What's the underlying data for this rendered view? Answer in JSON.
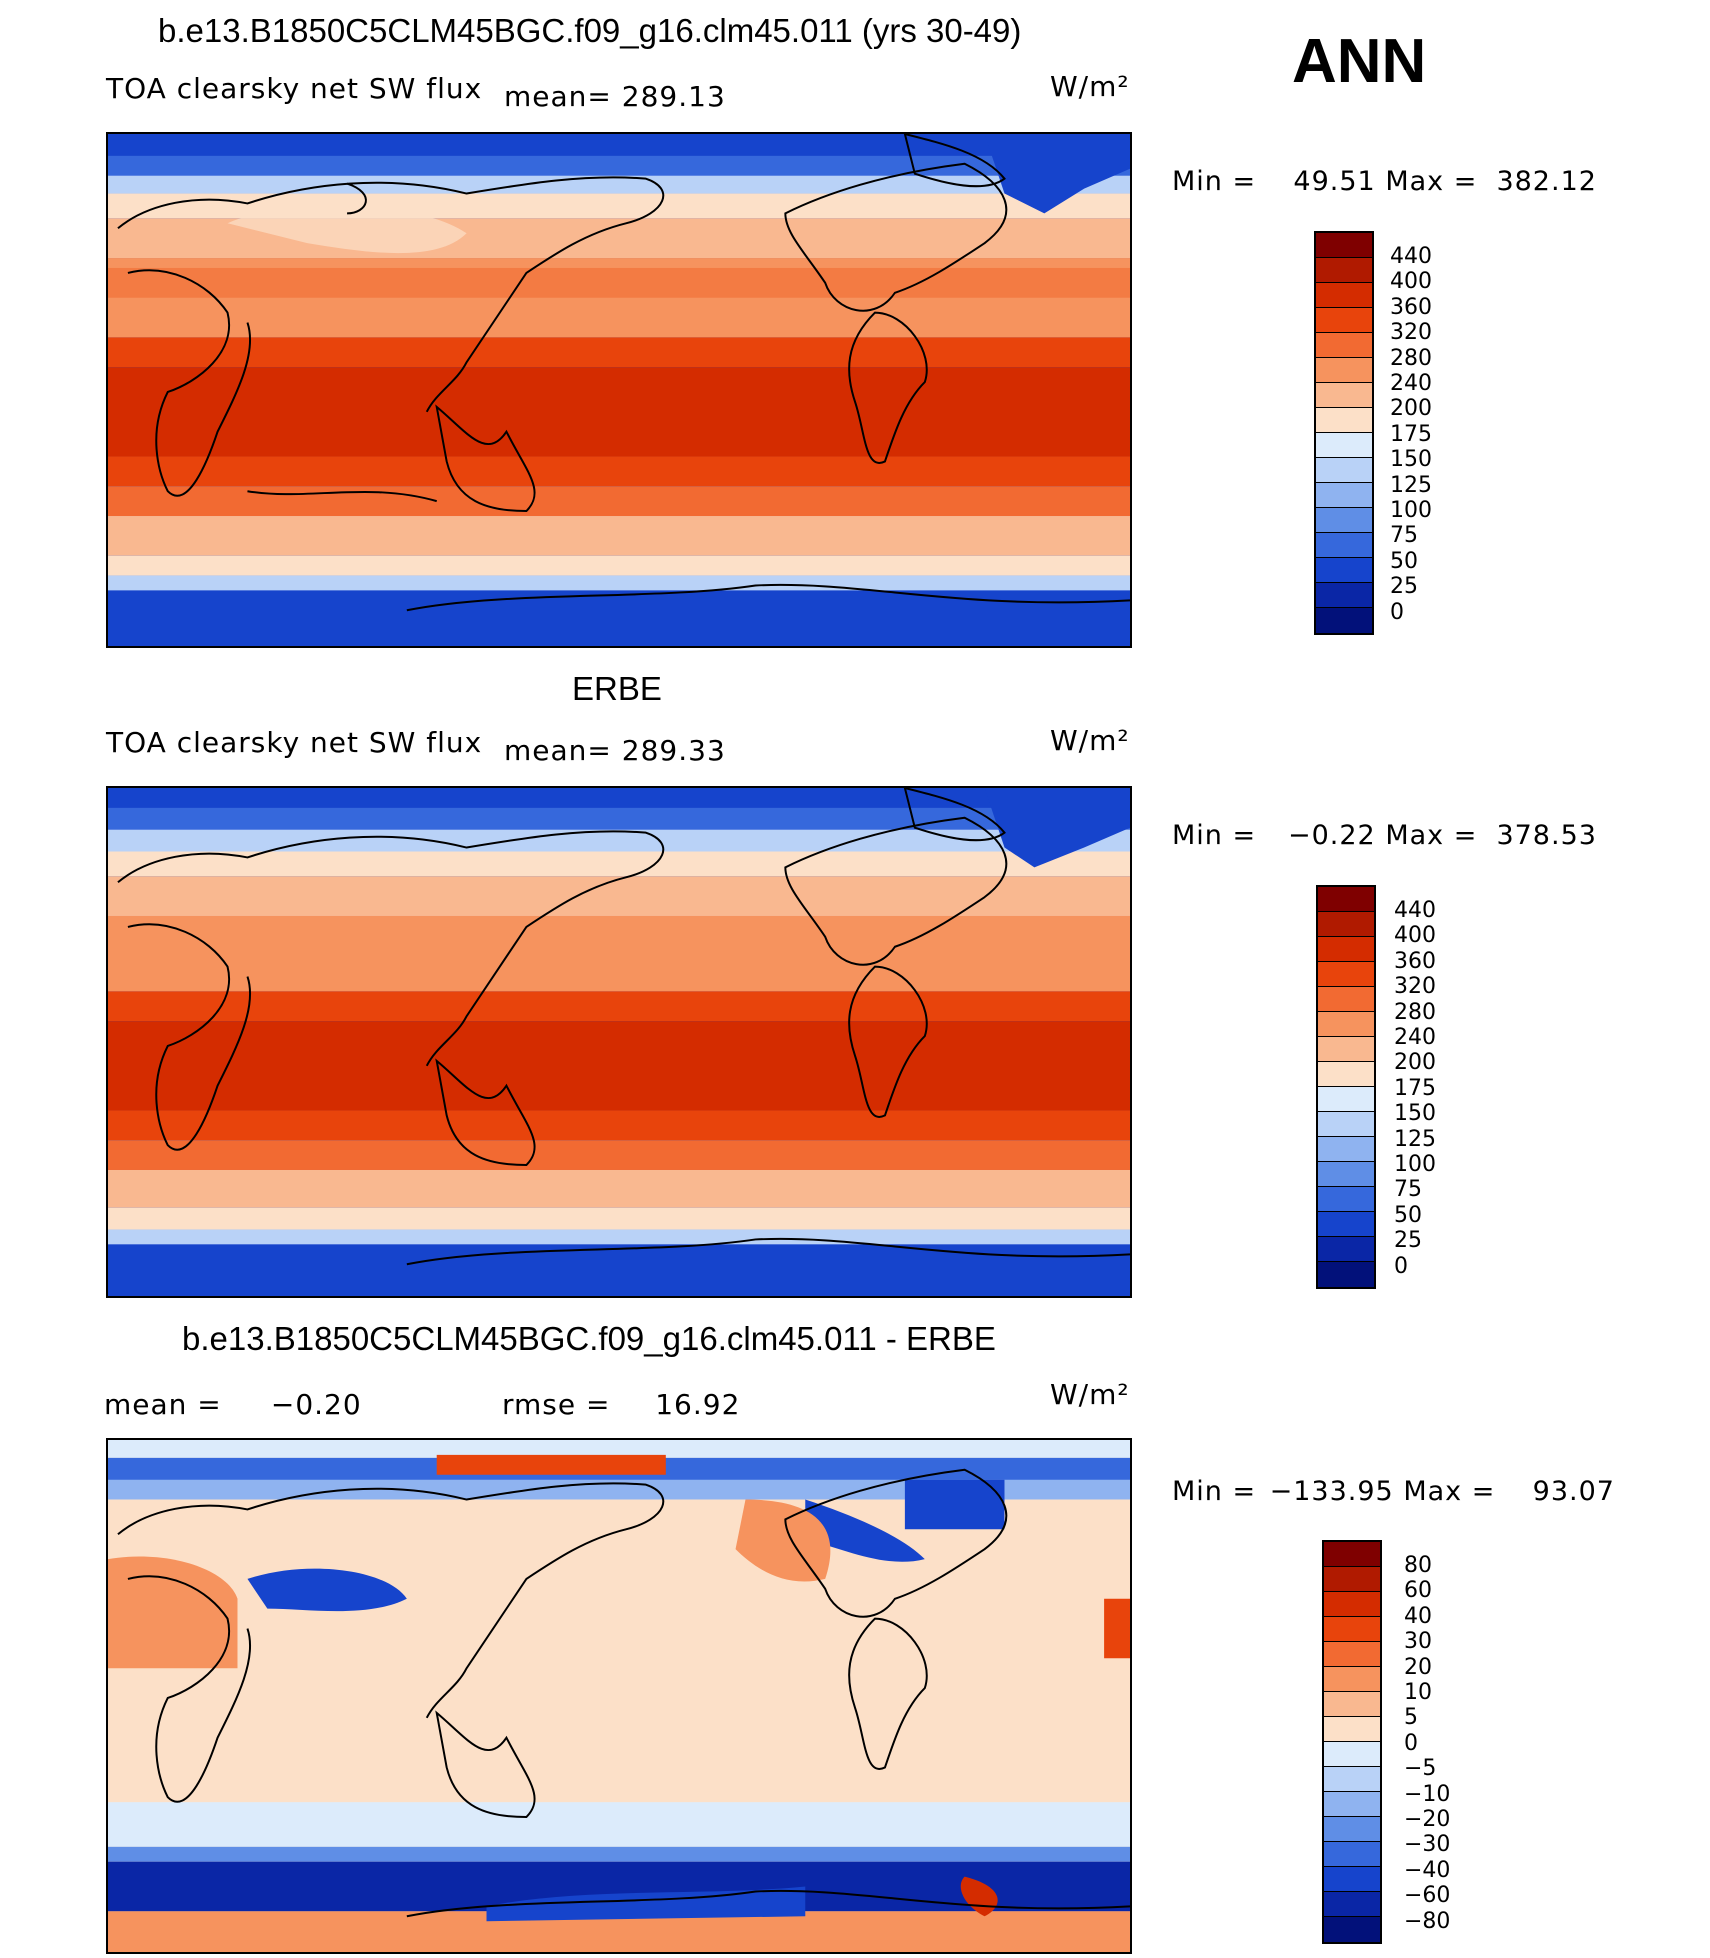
{
  "season": "ANN",
  "unit_label": "W/m²",
  "panels": [
    {
      "title": "b.e13.B1850C5CLM45BGC.f09_g16.clm45.011 (yrs 30-49)",
      "variable": "TOA clearsky net SW flux",
      "stat_label": "mean=",
      "stat_value": "289.13",
      "min_label": "Min =",
      "min_value": "49.51",
      "max_label": "Max =",
      "max_value": "382.12"
    },
    {
      "title": "ERBE",
      "variable": "TOA clearsky net SW flux",
      "stat_label": "mean=",
      "stat_value": "289.33",
      "min_label": "Min =",
      "min_value": "−0.22",
      "max_label": "Max =",
      "max_value": "378.53"
    },
    {
      "title": "b.e13.B1850C5CLM45BGC.f09_g16.clm45.011 - ERBE",
      "mean_label": "mean =",
      "mean_value": "−0.20",
      "rmse_label": "rmse =",
      "rmse_value": "16.92",
      "min_label": "Min =",
      "min_value": "−133.95",
      "max_label": "Max =",
      "max_value": "93.07"
    }
  ],
  "colorbars": {
    "absolute": {
      "labels": [
        "440",
        "400",
        "360",
        "320",
        "280",
        "240",
        "200",
        "175",
        "150",
        "125",
        "100",
        "75",
        "50",
        "25",
        "0"
      ],
      "colors": [
        "#7f0000",
        "#b01a00",
        "#d42c00",
        "#e8440c",
        "#f26a32",
        "#f6935e",
        "#f9b890",
        "#fce0c8",
        "#dcebfb",
        "#b9d2f7",
        "#8fb3f0",
        "#5f8ee6",
        "#3668dc",
        "#1644cc",
        "#0a26a6",
        "#02117a"
      ]
    },
    "difference": {
      "labels": [
        "80",
        "60",
        "40",
        "30",
        "20",
        "10",
        "5",
        "0",
        "−5",
        "−10",
        "−20",
        "−30",
        "−40",
        "−60",
        "−80"
      ],
      "colors": [
        "#7f0000",
        "#b01a00",
        "#d42c00",
        "#e8440c",
        "#f26a32",
        "#f6935e",
        "#f9b890",
        "#fce0c8",
        "#dcebfb",
        "#b9d2f7",
        "#8fb3f0",
        "#5f8ee6",
        "#3668dc",
        "#1644cc",
        "#0a26a6",
        "#02117a"
      ]
    }
  }
}
